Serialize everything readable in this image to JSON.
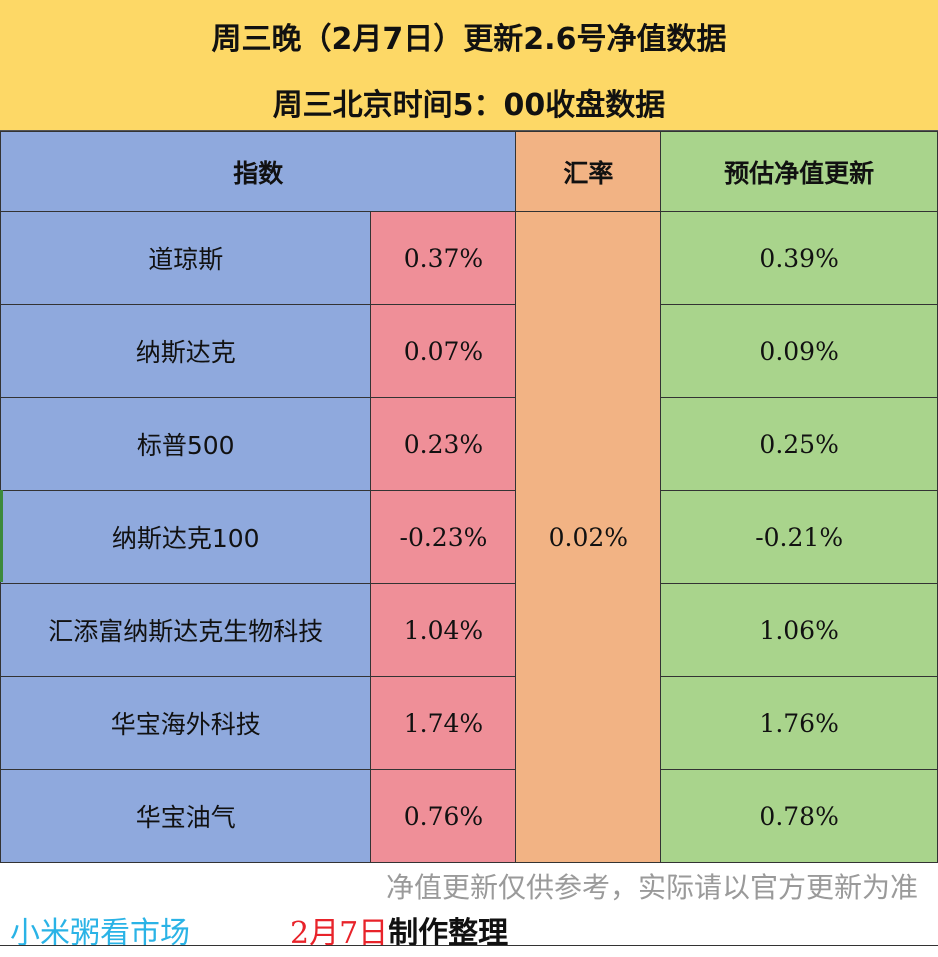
{
  "title": {
    "line1": "周三晚（2月7日）更新2.6号净值数据",
    "line2": "周三北京时间5：00收盘数据"
  },
  "headers": {
    "index": "指数",
    "rate": "汇率",
    "estimate": "预估净值更新"
  },
  "rate_value": "0.02%",
  "rows": [
    {
      "name": "道琼斯",
      "change": "0.37%",
      "estimate": "0.39%"
    },
    {
      "name": "纳斯达克",
      "change": "0.07%",
      "estimate": "0.09%"
    },
    {
      "name": "标普500",
      "change": "0.23%",
      "estimate": "0.25%"
    },
    {
      "name": "纳斯达克100",
      "change": "-0.23%",
      "estimate": "-0.21%"
    },
    {
      "name": "汇添富纳斯达克生物科技",
      "change": "1.04%",
      "estimate": "1.06%"
    },
    {
      "name": "华宝海外科技",
      "change": "1.74%",
      "estimate": "1.76%"
    },
    {
      "name": "华宝油气",
      "change": "0.76%",
      "estimate": "0.78%"
    }
  ],
  "footer": {
    "disclaimer": "净值更新仅供参考，实际请以官方更新为准",
    "brand": "小米粥看市场",
    "date": "2月7日",
    "made_by": "制作整理"
  },
  "colors": {
    "title_bg": "#fdd866",
    "index_bg": "#8fa9dd",
    "change_bg": "#ef8f98",
    "rate_bg": "#f2b384",
    "estimate_bg": "#a9d48c",
    "brand": "#2ab3e6",
    "date": "#e8232a"
  }
}
